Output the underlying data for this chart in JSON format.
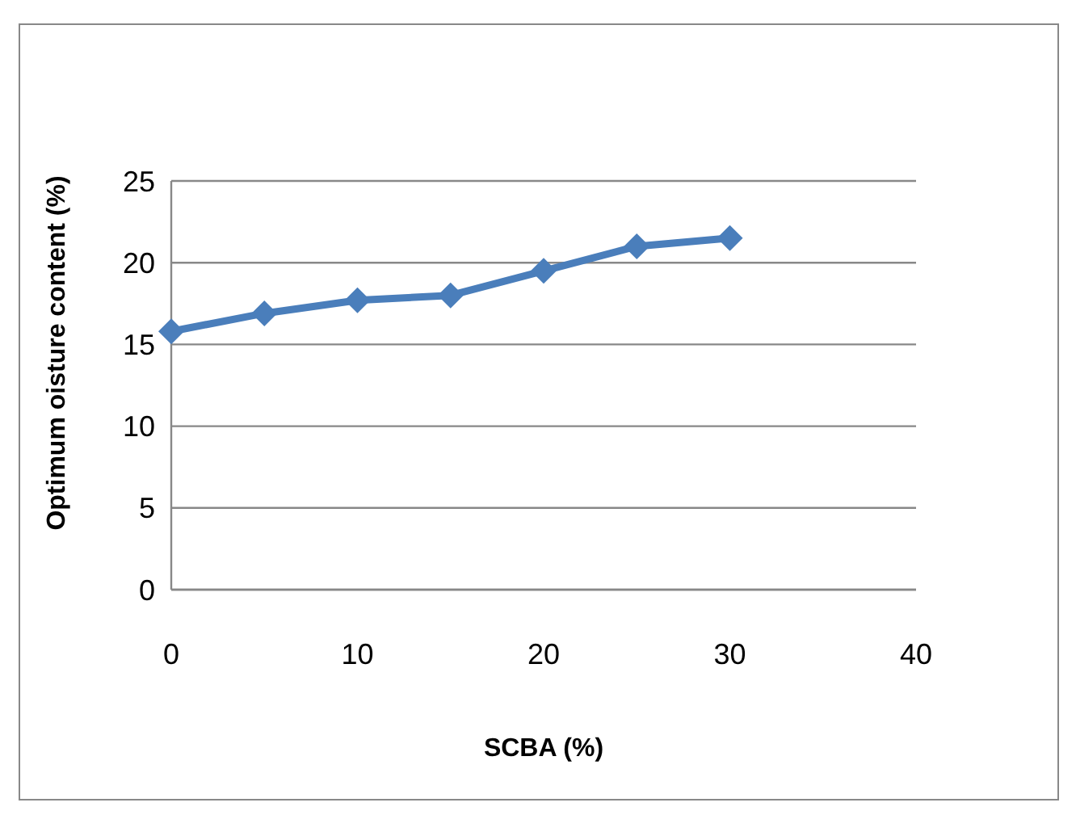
{
  "chart_data": {
    "type": "line",
    "xlabel": "SCBA (%)",
    "ylabel": "Optimum oisture content (%)",
    "x": [
      0,
      5,
      10,
      15,
      20,
      25,
      30
    ],
    "series": [
      {
        "color": "#4a7ebb",
        "values": [
          15.8,
          16.9,
          17.7,
          18.0,
          19.5,
          21.0,
          21.5
        ]
      }
    ],
    "xlim": [
      0,
      40
    ],
    "xticks": [
      0,
      10,
      20,
      30,
      40
    ],
    "ylim": [
      0,
      25
    ],
    "yticks": [
      0,
      5,
      10,
      15,
      20,
      25
    ],
    "grid": "y",
    "marker": "diamond",
    "line_style": "solid"
  }
}
